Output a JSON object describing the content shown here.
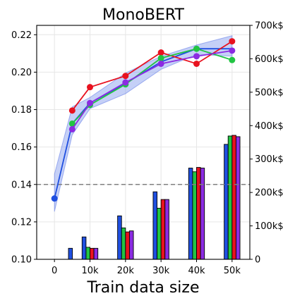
{
  "chart_data": {
    "type": "bar+line",
    "title": "MonoBERT",
    "xlabel": "Train data size",
    "ylabel": "",
    "ylabel_right": "",
    "x_categories": [
      "0",
      "10k",
      "20k",
      "30k",
      "40k",
      "50k"
    ],
    "x_values": [
      0,
      10,
      20,
      30,
      40,
      50
    ],
    "ylim": [
      0.1,
      0.225
    ],
    "yticks": [
      "0.10",
      "0.12",
      "0.14",
      "0.16",
      "0.18",
      "0.20",
      "0.22"
    ],
    "ytick_values": [
      0.1,
      0.12,
      0.14,
      0.16,
      0.18,
      0.2,
      0.22
    ],
    "ylim_right": [
      0,
      700
    ],
    "yticks_right": [
      "0",
      "100k$",
      "200k$",
      "300k$",
      "400k$",
      "500k$",
      "600k$",
      "700k$"
    ],
    "ytick_right_values": [
      0,
      100,
      200,
      300,
      400,
      500,
      600,
      700
    ],
    "reference_line": {
      "y": 0.14,
      "style": "dashed",
      "color": "#808080"
    },
    "grid": true,
    "line_series": [
      {
        "color": "#e8121f",
        "x": [
          5,
          10,
          20,
          30,
          40,
          50
        ],
        "y": [
          0.1795,
          0.192,
          0.198,
          0.2105,
          0.2045,
          0.2165
        ]
      },
      {
        "color": "#22c443",
        "x": [
          5,
          10,
          20,
          30,
          40,
          50
        ],
        "y": [
          0.1725,
          0.1825,
          0.1935,
          0.2075,
          0.2125,
          0.2065
        ]
      },
      {
        "color": "#8b2be2",
        "x": [
          5,
          10,
          20,
          30,
          40,
          50
        ],
        "y": [
          0.1695,
          0.1835,
          0.1945,
          0.2045,
          0.2085,
          0.2115
        ]
      }
    ],
    "mean_series": {
      "color": "#1f4fe0",
      "x": [
        0,
        5,
        10,
        20,
        30,
        40,
        50
      ],
      "y": [
        0.1325,
        0.1725,
        0.1835,
        0.194,
        0.2055,
        0.2125,
        0.2125
      ],
      "band_lower": [
        0.1255,
        0.1665,
        0.1805,
        0.1885,
        0.2015,
        0.2095,
        0.2085
      ],
      "band_upper": [
        0.1455,
        0.1815,
        0.1865,
        0.1995,
        0.2085,
        0.2145,
        0.2195
      ]
    },
    "bar_groups": [
      {
        "x": 0,
        "bars": [
          {
            "color": "#1f4fe0",
            "value": 0
          },
          {
            "color": "#22c443",
            "value": 0
          },
          {
            "color": "#e8121f",
            "value": 0
          },
          {
            "color": "#8b2be2",
            "value": 0
          }
        ],
        "extra_bar": {
          "x": 4.5,
          "color": "#1f4fe0",
          "value": 33
        }
      },
      {
        "x": 10,
        "bars": [
          {
            "color": "#1f4fe0",
            "value": 67
          },
          {
            "color": "#22c443",
            "value": 36
          },
          {
            "color": "#e8121f",
            "value": 33
          },
          {
            "color": "#8b2be2",
            "value": 33
          }
        ]
      },
      {
        "x": 20,
        "bars": [
          {
            "color": "#1f4fe0",
            "value": 130
          },
          {
            "color": "#22c443",
            "value": 94
          },
          {
            "color": "#e8121f",
            "value": 82
          },
          {
            "color": "#8b2be2",
            "value": 85
          }
        ]
      },
      {
        "x": 30,
        "bars": [
          {
            "color": "#1f4fe0",
            "value": 202
          },
          {
            "color": "#22c443",
            "value": 153
          },
          {
            "color": "#e8121f",
            "value": 179
          },
          {
            "color": "#8b2be2",
            "value": 179
          }
        ]
      },
      {
        "x": 40,
        "bars": [
          {
            "color": "#1f4fe0",
            "value": 273
          },
          {
            "color": "#22c443",
            "value": 262
          },
          {
            "color": "#e8121f",
            "value": 275
          },
          {
            "color": "#8b2be2",
            "value": 273
          }
        ]
      },
      {
        "x": 50,
        "bars": [
          {
            "color": "#1f4fe0",
            "value": 344
          },
          {
            "color": "#22c443",
            "value": 369
          },
          {
            "color": "#e8121f",
            "value": 371
          },
          {
            "color": "#8b2be2",
            "value": 367
          }
        ]
      }
    ]
  }
}
